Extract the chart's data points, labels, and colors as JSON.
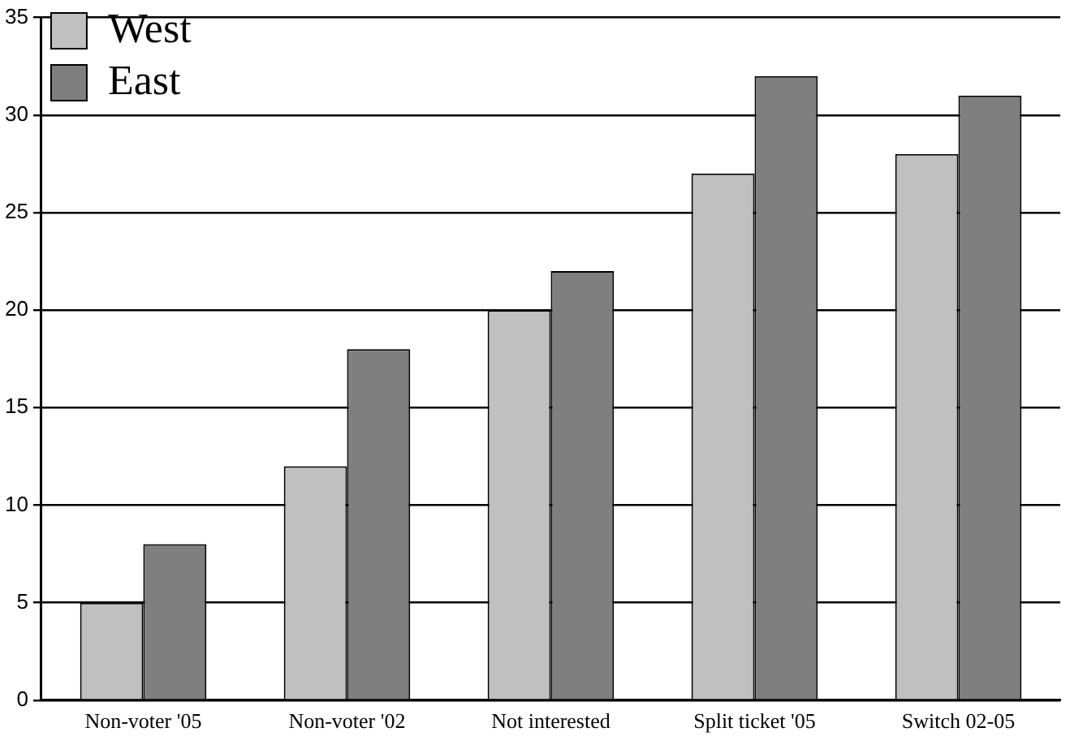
{
  "chart_data": {
    "type": "bar",
    "categories": [
      "Non-voter '05",
      "Non-voter '02",
      "Not interested",
      "Split ticket '05",
      "Switch 02-05"
    ],
    "series": [
      {
        "name": "West",
        "color": "#c0c0c0",
        "values": [
          5,
          12,
          20,
          27,
          28
        ]
      },
      {
        "name": "East",
        "color": "#7f7f7f",
        "values": [
          8,
          18,
          22,
          32,
          31
        ]
      }
    ],
    "ylim": [
      0,
      35
    ],
    "yticks": [
      0,
      5,
      10,
      15,
      20,
      25,
      30,
      35
    ],
    "grid": "y",
    "legend": "top left"
  }
}
